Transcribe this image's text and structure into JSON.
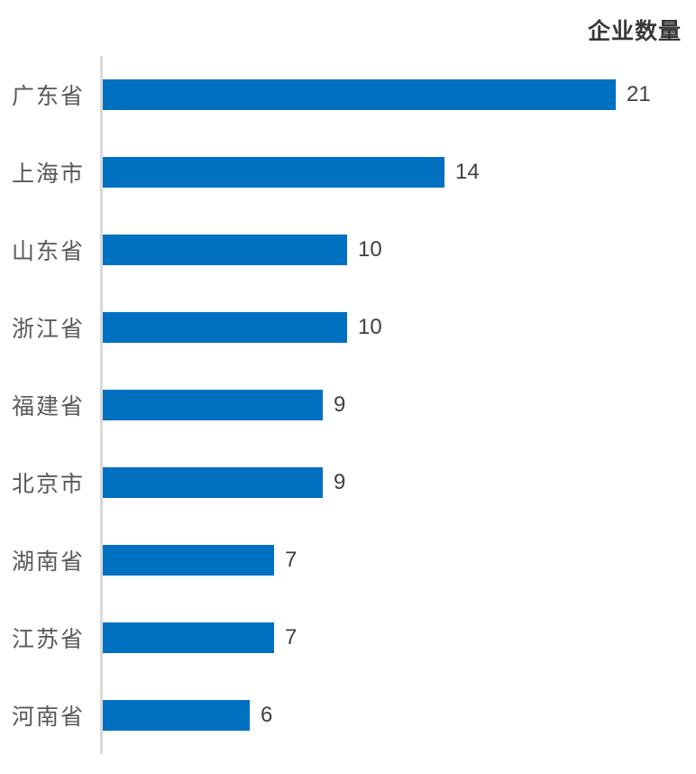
{
  "chart_data": {
    "type": "bar",
    "orientation": "horizontal",
    "title": "企业数量",
    "categories": [
      "广东省",
      "上海市",
      "山东省",
      "浙江省",
      "福建省",
      "北京市",
      "湖南省",
      "江苏省",
      "河南省"
    ],
    "values": [
      21,
      14,
      10,
      10,
      9,
      9,
      7,
      7,
      6
    ],
    "xlabel": "",
    "ylabel": "",
    "xlim": [
      0,
      21
    ],
    "grid": false,
    "legend_position": "none",
    "data_labels": true,
    "colors": {
      "bar": "#0070C0",
      "axis": "#D9D9D9",
      "category_label": "#595959",
      "value_label": "#404040",
      "title": "#383838"
    }
  }
}
